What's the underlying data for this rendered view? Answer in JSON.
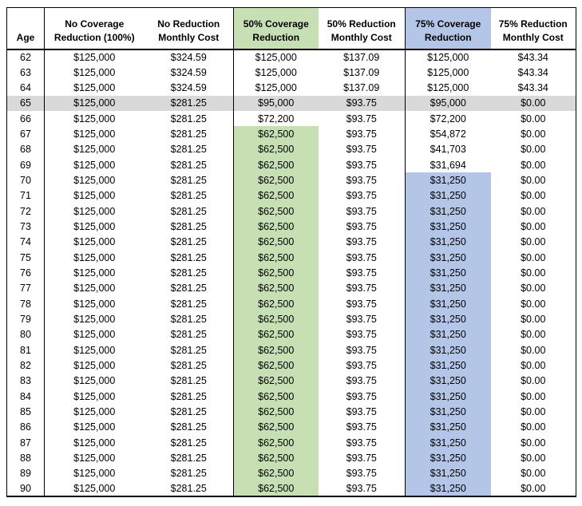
{
  "colors": {
    "green_highlight": "#C6E0B4",
    "blue_highlight": "#B4C6E7",
    "grey_highlight": "#D9D9D9",
    "border": "#000000",
    "text": "#000000",
    "background": "#FFFFFF"
  },
  "chart_data": {
    "type": "table",
    "columns": [
      {
        "id": "age",
        "header_lines": [
          "Age"
        ],
        "header_highlight": ""
      },
      {
        "id": "no-coverage-reduction",
        "header_lines": [
          "No Coverage",
          "Reduction (100%)"
        ],
        "header_highlight": ""
      },
      {
        "id": "no-reduction-monthly-cost",
        "header_lines": [
          "No Reduction",
          "Monthly Cost"
        ],
        "header_highlight": ""
      },
      {
        "id": "50-coverage-reduction",
        "header_lines": [
          "50% Coverage",
          "Reduction"
        ],
        "header_highlight": "green"
      },
      {
        "id": "50-reduction-monthly-cost",
        "header_lines": [
          "50% Reduction",
          "Monthly Cost"
        ],
        "header_highlight": ""
      },
      {
        "id": "75-coverage-reduction",
        "header_lines": [
          "75% Coverage",
          "Reduction"
        ],
        "header_highlight": "blue"
      },
      {
        "id": "75-reduction-monthly-cost",
        "header_lines": [
          "75% Reduction",
          "Monthly Cost"
        ],
        "header_highlight": ""
      }
    ],
    "rows": [
      {
        "cells": [
          "62",
          "$125,000",
          "$324.59",
          "$125,000",
          "$137.09",
          "$125,000",
          "$43.34"
        ],
        "row_highlight": "",
        "cell_highlights": [
          "",
          "",
          "",
          "",
          "",
          "",
          ""
        ]
      },
      {
        "cells": [
          "63",
          "$125,000",
          "$324.59",
          "$125,000",
          "$137.09",
          "$125,000",
          "$43.34"
        ],
        "row_highlight": "",
        "cell_highlights": [
          "",
          "",
          "",
          "",
          "",
          "",
          ""
        ]
      },
      {
        "cells": [
          "64",
          "$125,000",
          "$324.59",
          "$125,000",
          "$137.09",
          "$125,000",
          "$43.34"
        ],
        "row_highlight": "",
        "cell_highlights": [
          "",
          "",
          "",
          "",
          "",
          "",
          ""
        ]
      },
      {
        "cells": [
          "65",
          "$125,000",
          "$281.25",
          "$95,000",
          "$93.75",
          "$95,000",
          "$0.00"
        ],
        "row_highlight": "grey",
        "cell_highlights": [
          "",
          "",
          "",
          "",
          "",
          "",
          ""
        ]
      },
      {
        "cells": [
          "66",
          "$125,000",
          "$281.25",
          "$72,200",
          "$93.75",
          "$72,200",
          "$0.00"
        ],
        "row_highlight": "",
        "cell_highlights": [
          "",
          "",
          "",
          "",
          "",
          "",
          ""
        ]
      },
      {
        "cells": [
          "67",
          "$125,000",
          "$281.25",
          "$62,500",
          "$93.75",
          "$54,872",
          "$0.00"
        ],
        "row_highlight": "",
        "cell_highlights": [
          "",
          "",
          "",
          "green",
          "",
          "",
          ""
        ]
      },
      {
        "cells": [
          "68",
          "$125,000",
          "$281.25",
          "$62,500",
          "$93.75",
          "$41,703",
          "$0.00"
        ],
        "row_highlight": "",
        "cell_highlights": [
          "",
          "",
          "",
          "green",
          "",
          "",
          ""
        ]
      },
      {
        "cells": [
          "69",
          "$125,000",
          "$281.25",
          "$62,500",
          "$93.75",
          "$31,694",
          "$0.00"
        ],
        "row_highlight": "",
        "cell_highlights": [
          "",
          "",
          "",
          "green",
          "",
          "",
          ""
        ]
      },
      {
        "cells": [
          "70",
          "$125,000",
          "$281.25",
          "$62,500",
          "$93.75",
          "$31,250",
          "$0.00"
        ],
        "row_highlight": "",
        "cell_highlights": [
          "",
          "",
          "",
          "green",
          "",
          "blue",
          ""
        ]
      },
      {
        "cells": [
          "71",
          "$125,000",
          "$281.25",
          "$62,500",
          "$93.75",
          "$31,250",
          "$0.00"
        ],
        "row_highlight": "",
        "cell_highlights": [
          "",
          "",
          "",
          "green",
          "",
          "blue",
          ""
        ]
      },
      {
        "cells": [
          "72",
          "$125,000",
          "$281.25",
          "$62,500",
          "$93.75",
          "$31,250",
          "$0.00"
        ],
        "row_highlight": "",
        "cell_highlights": [
          "",
          "",
          "",
          "green",
          "",
          "blue",
          ""
        ]
      },
      {
        "cells": [
          "73",
          "$125,000",
          "$281.25",
          "$62,500",
          "$93.75",
          "$31,250",
          "$0.00"
        ],
        "row_highlight": "",
        "cell_highlights": [
          "",
          "",
          "",
          "green",
          "",
          "blue",
          ""
        ]
      },
      {
        "cells": [
          "74",
          "$125,000",
          "$281.25",
          "$62,500",
          "$93.75",
          "$31,250",
          "$0.00"
        ],
        "row_highlight": "",
        "cell_highlights": [
          "",
          "",
          "",
          "green",
          "",
          "blue",
          ""
        ]
      },
      {
        "cells": [
          "75",
          "$125,000",
          "$281.25",
          "$62,500",
          "$93.75",
          "$31,250",
          "$0.00"
        ],
        "row_highlight": "",
        "cell_highlights": [
          "",
          "",
          "",
          "green",
          "",
          "blue",
          ""
        ]
      },
      {
        "cells": [
          "76",
          "$125,000",
          "$281.25",
          "$62,500",
          "$93.75",
          "$31,250",
          "$0.00"
        ],
        "row_highlight": "",
        "cell_highlights": [
          "",
          "",
          "",
          "green",
          "",
          "blue",
          ""
        ]
      },
      {
        "cells": [
          "77",
          "$125,000",
          "$281.25",
          "$62,500",
          "$93.75",
          "$31,250",
          "$0.00"
        ],
        "row_highlight": "",
        "cell_highlights": [
          "",
          "",
          "",
          "green",
          "",
          "blue",
          ""
        ]
      },
      {
        "cells": [
          "78",
          "$125,000",
          "$281.25",
          "$62,500",
          "$93.75",
          "$31,250",
          "$0.00"
        ],
        "row_highlight": "",
        "cell_highlights": [
          "",
          "",
          "",
          "green",
          "",
          "blue",
          ""
        ]
      },
      {
        "cells": [
          "79",
          "$125,000",
          "$281.25",
          "$62,500",
          "$93.75",
          "$31,250",
          "$0.00"
        ],
        "row_highlight": "",
        "cell_highlights": [
          "",
          "",
          "",
          "green",
          "",
          "blue",
          ""
        ]
      },
      {
        "cells": [
          "80",
          "$125,000",
          "$281.25",
          "$62,500",
          "$93.75",
          "$31,250",
          "$0.00"
        ],
        "row_highlight": "",
        "cell_highlights": [
          "",
          "",
          "",
          "green",
          "",
          "blue",
          ""
        ]
      },
      {
        "cells": [
          "81",
          "$125,000",
          "$281.25",
          "$62,500",
          "$93.75",
          "$31,250",
          "$0.00"
        ],
        "row_highlight": "",
        "cell_highlights": [
          "",
          "",
          "",
          "green",
          "",
          "blue",
          ""
        ]
      },
      {
        "cells": [
          "82",
          "$125,000",
          "$281.25",
          "$62,500",
          "$93.75",
          "$31,250",
          "$0.00"
        ],
        "row_highlight": "",
        "cell_highlights": [
          "",
          "",
          "",
          "green",
          "",
          "blue",
          ""
        ]
      },
      {
        "cells": [
          "83",
          "$125,000",
          "$281.25",
          "$62,500",
          "$93.75",
          "$31,250",
          "$0.00"
        ],
        "row_highlight": "",
        "cell_highlights": [
          "",
          "",
          "",
          "green",
          "",
          "blue",
          ""
        ]
      },
      {
        "cells": [
          "84",
          "$125,000",
          "$281.25",
          "$62,500",
          "$93.75",
          "$31,250",
          "$0.00"
        ],
        "row_highlight": "",
        "cell_highlights": [
          "",
          "",
          "",
          "green",
          "",
          "blue",
          ""
        ]
      },
      {
        "cells": [
          "85",
          "$125,000",
          "$281.25",
          "$62,500",
          "$93.75",
          "$31,250",
          "$0.00"
        ],
        "row_highlight": "",
        "cell_highlights": [
          "",
          "",
          "",
          "green",
          "",
          "blue",
          ""
        ]
      },
      {
        "cells": [
          "86",
          "$125,000",
          "$281.25",
          "$62,500",
          "$93.75",
          "$31,250",
          "$0.00"
        ],
        "row_highlight": "",
        "cell_highlights": [
          "",
          "",
          "",
          "green",
          "",
          "blue",
          ""
        ]
      },
      {
        "cells": [
          "87",
          "$125,000",
          "$281.25",
          "$62,500",
          "$93.75",
          "$31,250",
          "$0.00"
        ],
        "row_highlight": "",
        "cell_highlights": [
          "",
          "",
          "",
          "green",
          "",
          "blue",
          ""
        ]
      },
      {
        "cells": [
          "88",
          "$125,000",
          "$281.25",
          "$62,500",
          "$93.75",
          "$31,250",
          "$0.00"
        ],
        "row_highlight": "",
        "cell_highlights": [
          "",
          "",
          "",
          "green",
          "",
          "blue",
          ""
        ]
      },
      {
        "cells": [
          "89",
          "$125,000",
          "$281.25",
          "$62,500",
          "$93.75",
          "$31,250",
          "$0.00"
        ],
        "row_highlight": "",
        "cell_highlights": [
          "",
          "",
          "",
          "green",
          "",
          "blue",
          ""
        ]
      },
      {
        "cells": [
          "90",
          "$125,000",
          "$281.25",
          "$62,500",
          "$93.75",
          "$31,250",
          "$0.00"
        ],
        "row_highlight": "",
        "cell_highlights": [
          "",
          "",
          "",
          "green",
          "",
          "blue",
          ""
        ]
      }
    ]
  }
}
